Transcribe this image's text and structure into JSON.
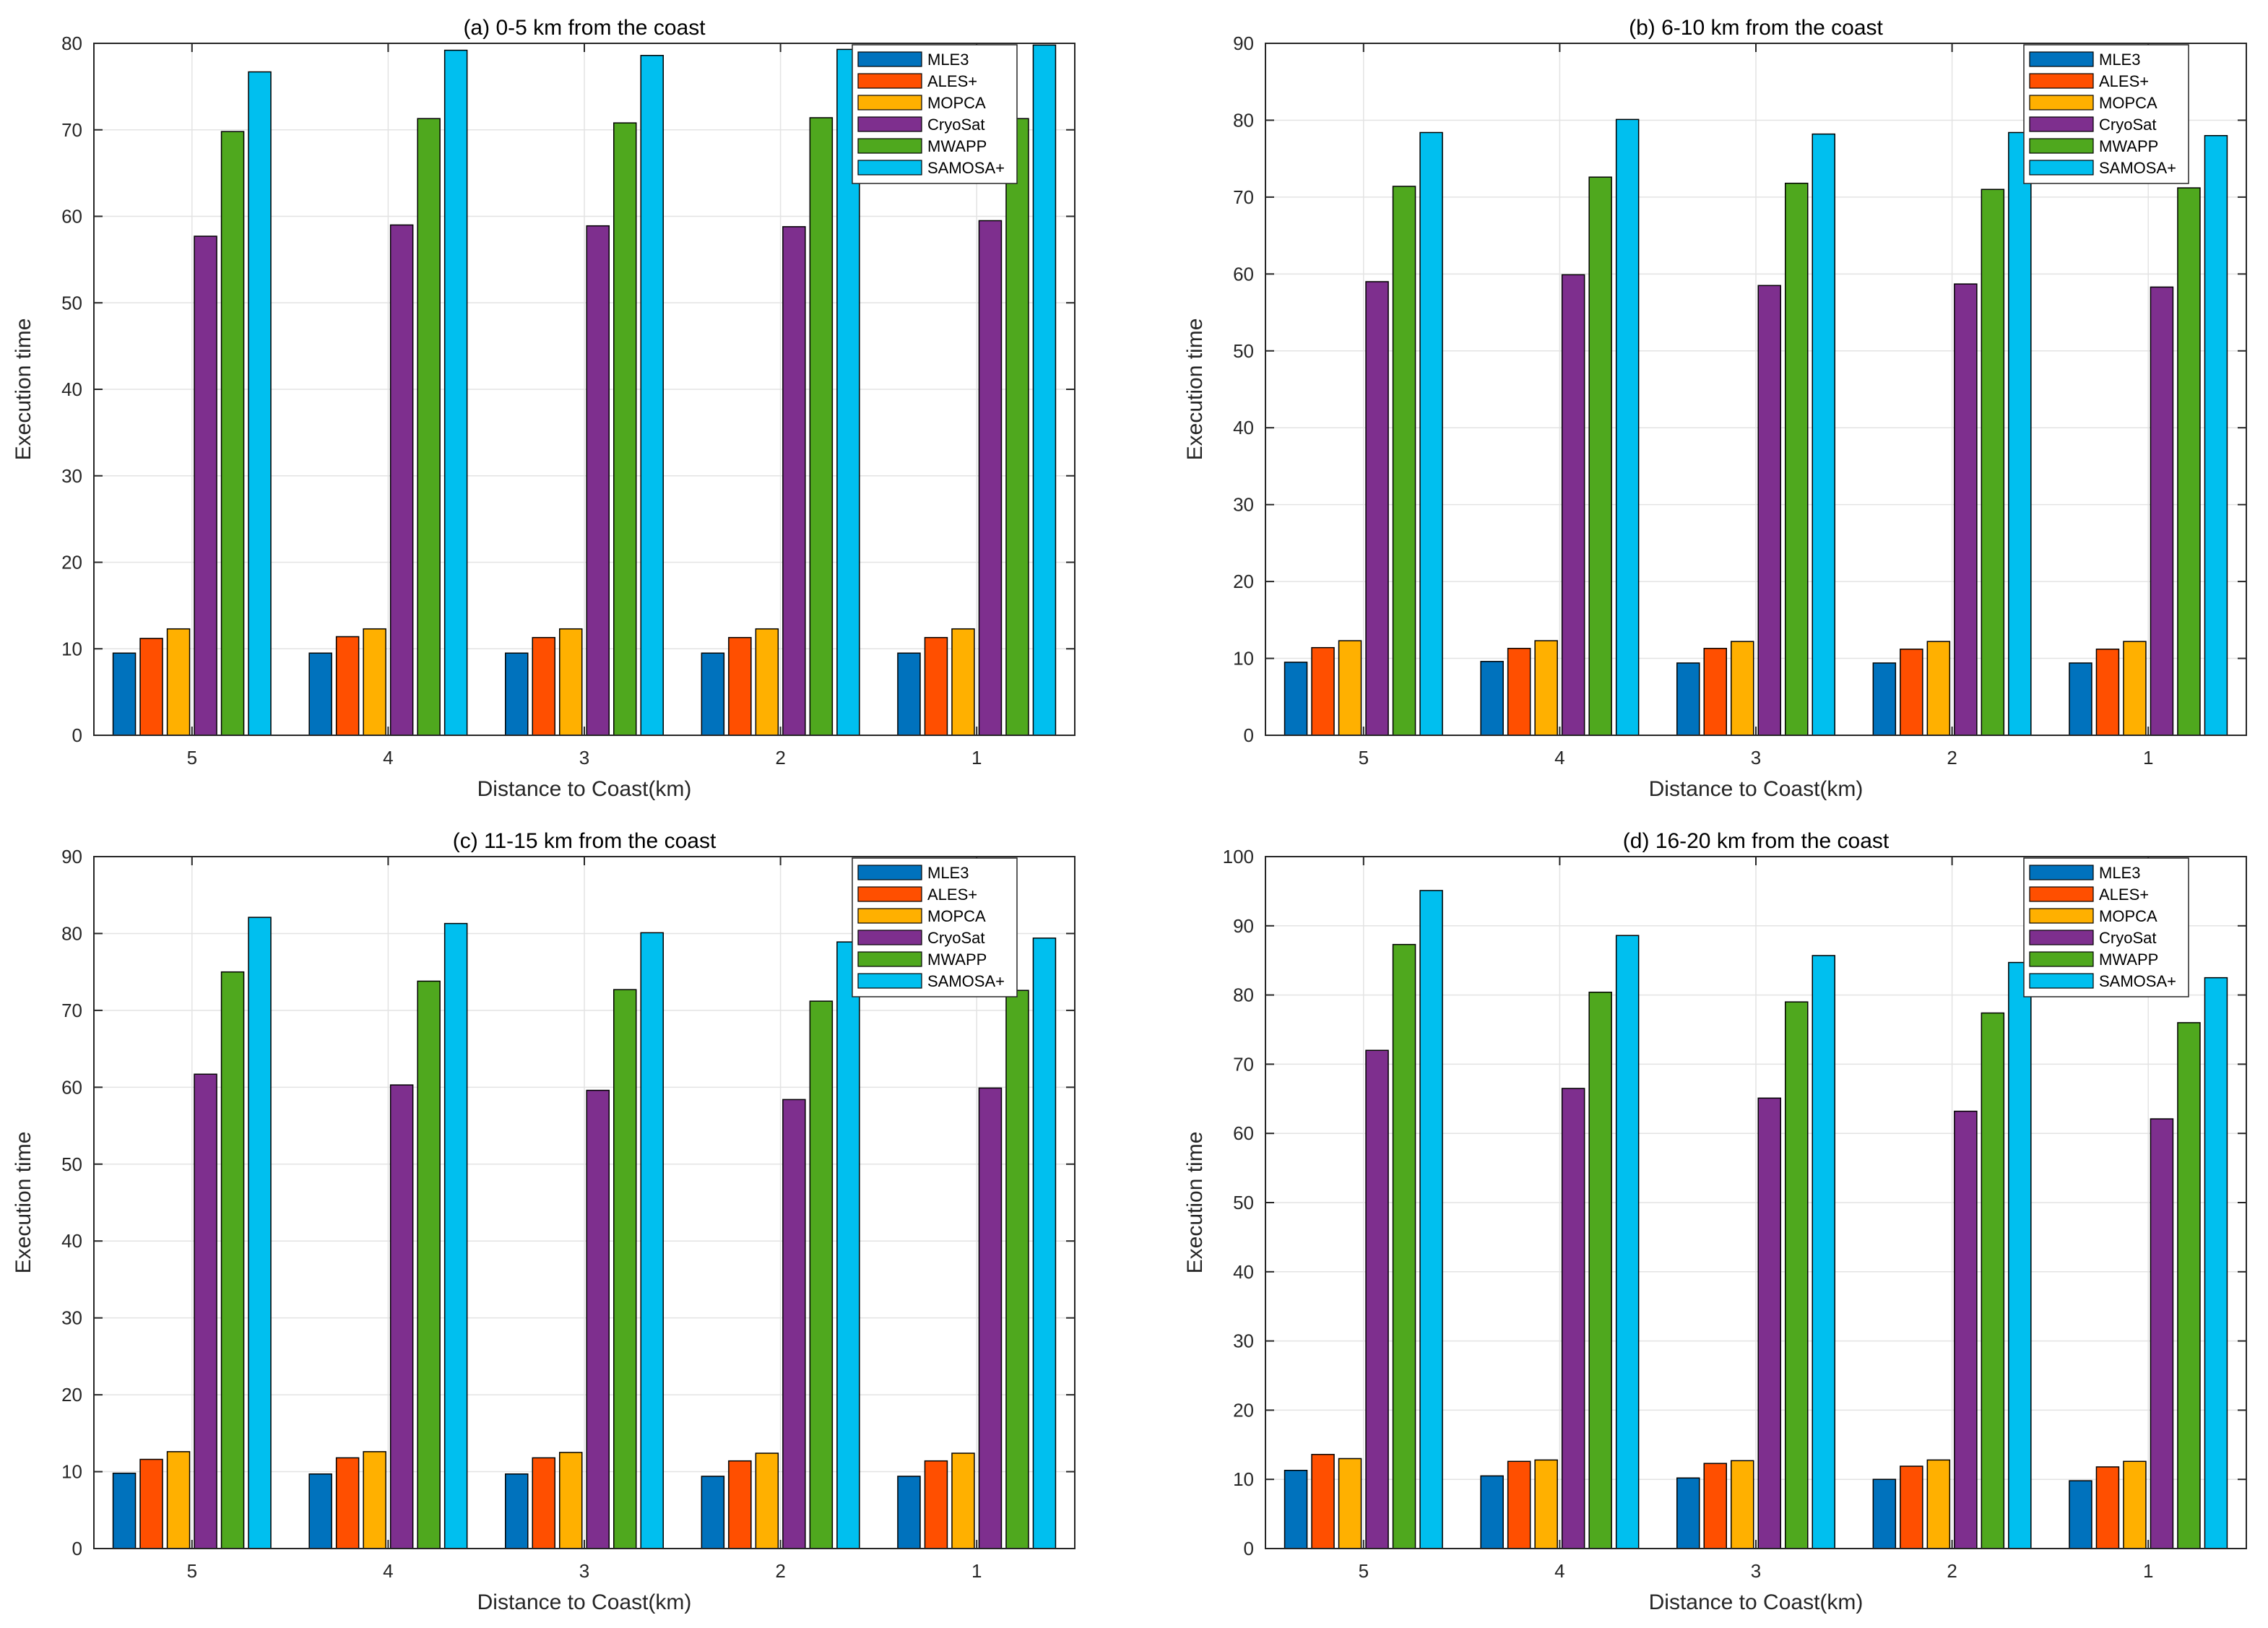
{
  "colors": {
    "MLE3": "#0072BD",
    "ALES+": "#FF4F00",
    "MOPCA": "#FFB000",
    "CryoSat": "#7E2F8E",
    "MWAPP": "#4FA81E",
    "SAMOSA+": "#00BFEF"
  },
  "chart_data": [
    {
      "type": "bar",
      "title": "(a) 0-5 km from the coast",
      "xlabel": "Distance to Coast(km)",
      "ylabel": "Execution time",
      "categories": [
        "5",
        "4",
        "3",
        "2",
        "1"
      ],
      "ylim": [
        0,
        80
      ],
      "yticks": [
        0,
        10,
        20,
        30,
        40,
        50,
        60,
        70,
        80
      ],
      "grid": true,
      "legend": "top-right",
      "series": [
        {
          "name": "MLE3",
          "values": [
            9.5,
            9.5,
            9.5,
            9.5,
            9.5
          ]
        },
        {
          "name": "ALES+",
          "values": [
            11.2,
            11.4,
            11.3,
            11.3,
            11.3
          ]
        },
        {
          "name": "MOPCA",
          "values": [
            12.3,
            12.3,
            12.3,
            12.3,
            12.3
          ]
        },
        {
          "name": "CryoSat",
          "values": [
            57.7,
            59.0,
            58.9,
            58.8,
            59.5
          ]
        },
        {
          "name": "MWAPP",
          "values": [
            69.8,
            71.3,
            70.8,
            71.4,
            71.3
          ]
        },
        {
          "name": "SAMOSA+",
          "values": [
            76.7,
            79.2,
            78.6,
            79.3,
            79.8
          ]
        }
      ]
    },
    {
      "type": "bar",
      "title": "(b) 6-10 km from the coast",
      "xlabel": "Distance to Coast(km)",
      "ylabel": "Execution time",
      "categories": [
        "5",
        "4",
        "3",
        "2",
        "1"
      ],
      "ylim": [
        0,
        90
      ],
      "yticks": [
        0,
        10,
        20,
        30,
        40,
        50,
        60,
        70,
        80,
        90
      ],
      "grid": true,
      "legend": "top-right",
      "series": [
        {
          "name": "MLE3",
          "values": [
            9.5,
            9.6,
            9.4,
            9.4,
            9.4
          ]
        },
        {
          "name": "ALES+",
          "values": [
            11.4,
            11.3,
            11.3,
            11.2,
            11.2
          ]
        },
        {
          "name": "MOPCA",
          "values": [
            12.3,
            12.3,
            12.2,
            12.2,
            12.2
          ]
        },
        {
          "name": "CryoSat",
          "values": [
            59.0,
            59.9,
            58.5,
            58.7,
            58.3
          ]
        },
        {
          "name": "MWAPP",
          "values": [
            71.4,
            72.6,
            71.8,
            71.0,
            71.2
          ]
        },
        {
          "name": "SAMOSA+",
          "values": [
            78.4,
            80.1,
            78.2,
            78.4,
            78.0
          ]
        }
      ]
    },
    {
      "type": "bar",
      "title": "(c) 11-15 km from the coast",
      "xlabel": "Distance to Coast(km)",
      "ylabel": "Execution time",
      "categories": [
        "5",
        "4",
        "3",
        "2",
        "1"
      ],
      "ylim": [
        0,
        90
      ],
      "yticks": [
        0,
        10,
        20,
        30,
        40,
        50,
        60,
        70,
        80,
        90
      ],
      "grid": true,
      "legend": "top-right",
      "series": [
        {
          "name": "MLE3",
          "values": [
            9.8,
            9.7,
            9.7,
            9.4,
            9.4
          ]
        },
        {
          "name": "ALES+",
          "values": [
            11.6,
            11.8,
            11.8,
            11.4,
            11.4
          ]
        },
        {
          "name": "MOPCA",
          "values": [
            12.6,
            12.6,
            12.5,
            12.4,
            12.4
          ]
        },
        {
          "name": "CryoSat",
          "values": [
            61.7,
            60.3,
            59.6,
            58.4,
            59.9
          ]
        },
        {
          "name": "MWAPP",
          "values": [
            75.0,
            73.8,
            72.7,
            71.2,
            72.6
          ]
        },
        {
          "name": "SAMOSA+",
          "values": [
            82.1,
            81.3,
            80.1,
            78.9,
            79.4
          ]
        }
      ]
    },
    {
      "type": "bar",
      "title": "(d) 16-20 km from the coast",
      "xlabel": "Distance to Coast(km)",
      "ylabel": "Execution time",
      "categories": [
        "5",
        "4",
        "3",
        "2",
        "1"
      ],
      "ylim": [
        0,
        100
      ],
      "yticks": [
        0,
        10,
        20,
        30,
        40,
        50,
        60,
        70,
        80,
        90,
        100
      ],
      "grid": true,
      "legend": "top-right",
      "series": [
        {
          "name": "MLE3",
          "values": [
            11.3,
            10.5,
            10.2,
            10.0,
            9.8
          ]
        },
        {
          "name": "ALES+",
          "values": [
            13.6,
            12.6,
            12.3,
            11.9,
            11.8
          ]
        },
        {
          "name": "MOPCA",
          "values": [
            13.0,
            12.8,
            12.7,
            12.8,
            12.6
          ]
        },
        {
          "name": "CryoSat",
          "values": [
            72.0,
            66.5,
            65.1,
            63.2,
            62.1
          ]
        },
        {
          "name": "MWAPP",
          "values": [
            87.3,
            80.4,
            79.0,
            77.4,
            76.0
          ]
        },
        {
          "name": "SAMOSA+",
          "values": [
            95.1,
            88.6,
            85.7,
            84.7,
            82.5
          ]
        }
      ]
    }
  ]
}
